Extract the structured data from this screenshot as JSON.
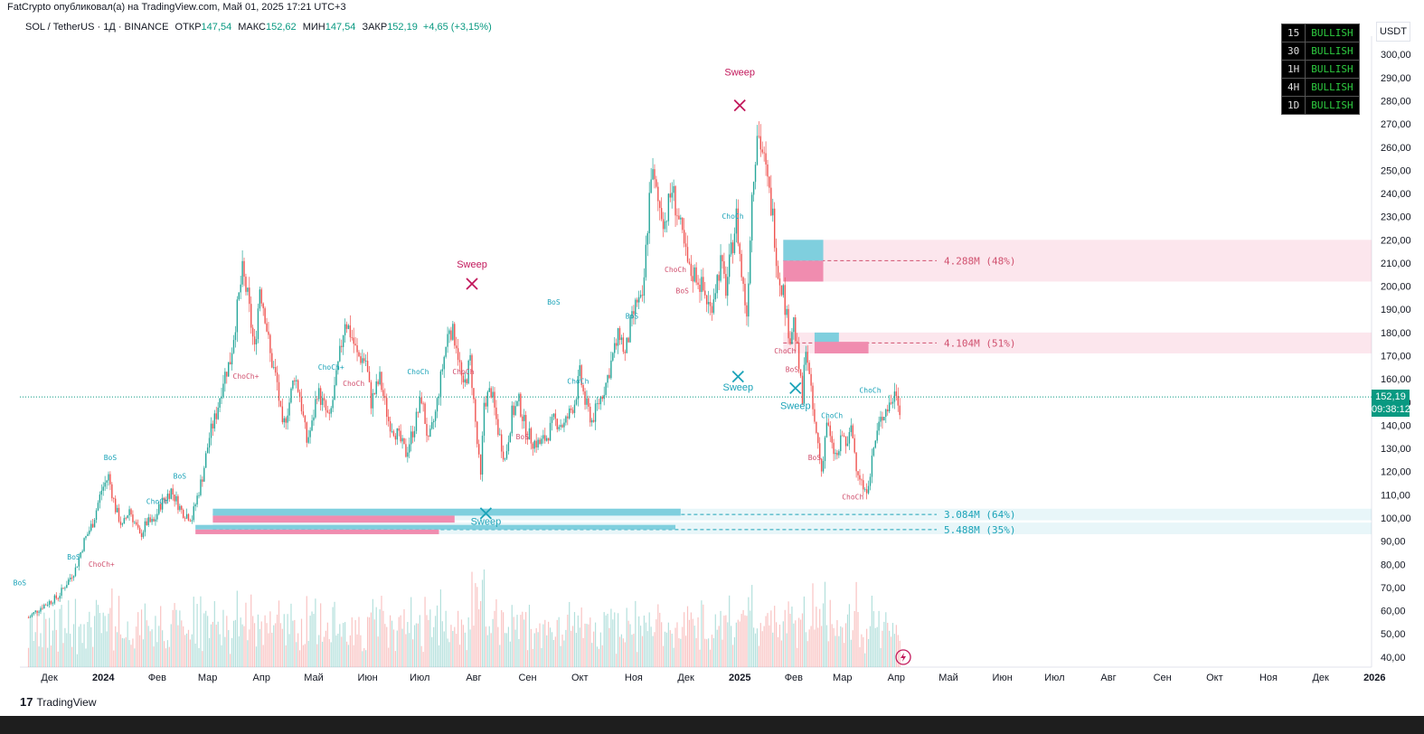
{
  "header": {
    "caption": "FatCrypto опубликовал(а) на TradingView.com, Май 01, 2025 17:21 UTC+3"
  },
  "legend": {
    "symbol": "SOL / TetherUS · 1Д · BINANCE",
    "open_label": "ОТКР",
    "open_value": "147,54",
    "high_label": "МАКС",
    "high_value": "152,62",
    "low_label": "МИН",
    "low_value": "147,54",
    "close_label": "ЗАКР",
    "close_value": "152,19",
    "change": "+4,65 (+3,15%)"
  },
  "currency_button": "USDT",
  "trend_table": [
    {
      "tf": "15",
      "status": "BULLISH"
    },
    {
      "tf": "30",
      "status": "BULLISH"
    },
    {
      "tf": "1H",
      "status": "BULLISH"
    },
    {
      "tf": "4H",
      "status": "BULLISH"
    },
    {
      "tf": "1D",
      "status": "BULLISH"
    }
  ],
  "current_price": {
    "price": "152,19",
    "countdown": "09:38:12"
  },
  "footer": {
    "brand": "TradingView",
    "logo": "17"
  },
  "colors": {
    "up": "#26a69a",
    "down": "#ef5350",
    "bull_zone": "#7fcfde",
    "bear_zone": "#f08caf",
    "sweep_red": "#c2185b",
    "sweep_teal": "#1ba3b8"
  },
  "chart_data": {
    "type": "candlestick",
    "symbol": "SOL / TetherUS",
    "timeframe": "1D",
    "ylim": [
      37,
      306
    ],
    "y_ticks": [
      "40,00",
      "50,00",
      "60,00",
      "70,00",
      "80,00",
      "90,00",
      "100,00",
      "110,00",
      "120,00",
      "130,00",
      "140,00",
      "150,00",
      "160,00",
      "170,00",
      "180,00",
      "190,00",
      "200,00",
      "210,00",
      "220,00",
      "230,00",
      "240,00",
      "250,00",
      "260,00",
      "270,00",
      "280,00",
      "290,00",
      "300,00"
    ],
    "x_ticks": [
      {
        "label": "Дек",
        "day": 0,
        "bold": false
      },
      {
        "label": "2024",
        "day": 31,
        "bold": true
      },
      {
        "label": "Фев",
        "day": 62,
        "bold": false
      },
      {
        "label": "Мар",
        "day": 91,
        "bold": false
      },
      {
        "label": "Апр",
        "day": 122,
        "bold": false
      },
      {
        "label": "Май",
        "day": 152,
        "bold": false
      },
      {
        "label": "Июн",
        "day": 183,
        "bold": false
      },
      {
        "label": "Июл",
        "day": 213,
        "bold": false
      },
      {
        "label": "Авг",
        "day": 244,
        "bold": false
      },
      {
        "label": "Сен",
        "day": 275,
        "bold": false
      },
      {
        "label": "Окт",
        "day": 305,
        "bold": false
      },
      {
        "label": "Ноя",
        "day": 336,
        "bold": false
      },
      {
        "label": "Дек",
        "day": 366,
        "bold": false
      },
      {
        "label": "2025",
        "day": 397,
        "bold": true
      },
      {
        "label": "Фев",
        "day": 428,
        "bold": false
      },
      {
        "label": "Мар",
        "day": 456,
        "bold": false
      },
      {
        "label": "Апр",
        "day": 487,
        "bold": false
      },
      {
        "label": "Май",
        "day": 517,
        "bold": false
      },
      {
        "label": "Июн",
        "day": 548,
        "bold": false
      },
      {
        "label": "Июл",
        "day": 578,
        "bold": false
      },
      {
        "label": "Авг",
        "day": 609,
        "bold": false
      },
      {
        "label": "Сен",
        "day": 640,
        "bold": false
      },
      {
        "label": "Окт",
        "day": 670,
        "bold": false
      },
      {
        "label": "Ноя",
        "day": 701,
        "bold": false
      },
      {
        "label": "Дек",
        "day": 731,
        "bold": false
      },
      {
        "label": "2026",
        "day": 762,
        "bold": true
      }
    ],
    "price_path": [
      [
        -12,
        57
      ],
      [
        -4,
        62
      ],
      [
        5,
        66
      ],
      [
        10,
        72
      ],
      [
        15,
        78
      ],
      [
        20,
        90
      ],
      [
        25,
        98
      ],
      [
        30,
        112
      ],
      [
        34,
        118
      ],
      [
        38,
        104
      ],
      [
        42,
        96
      ],
      [
        46,
        104
      ],
      [
        52,
        92
      ],
      [
        56,
        98
      ],
      [
        60,
        98
      ],
      [
        64,
        106
      ],
      [
        70,
        112
      ],
      [
        76,
        103
      ],
      [
        82,
        100
      ],
      [
        88,
        118
      ],
      [
        92,
        135
      ],
      [
        96,
        145
      ],
      [
        100,
        160
      ],
      [
        104,
        168
      ],
      [
        108,
        190
      ],
      [
        111,
        206
      ],
      [
        114,
        195
      ],
      [
        118,
        172
      ],
      [
        121,
        200
      ],
      [
        124,
        188
      ],
      [
        127,
        170
      ],
      [
        131,
        158
      ],
      [
        134,
        138
      ],
      [
        138,
        150
      ],
      [
        141,
        162
      ],
      [
        144,
        153
      ],
      [
        148,
        133
      ],
      [
        151,
        140
      ],
      [
        154,
        155
      ],
      [
        158,
        148
      ],
      [
        161,
        142
      ],
      [
        165,
        160
      ],
      [
        170,
        186
      ],
      [
        174,
        178
      ],
      [
        177,
        170
      ],
      [
        182,
        168
      ],
      [
        185,
        150
      ],
      [
        190,
        160
      ],
      [
        195,
        142
      ],
      [
        200,
        136
      ],
      [
        205,
        128
      ],
      [
        210,
        140
      ],
      [
        214,
        152
      ],
      [
        218,
        132
      ],
      [
        222,
        145
      ],
      [
        226,
        165
      ],
      [
        230,
        183
      ],
      [
        234,
        176
      ],
      [
        238,
        155
      ],
      [
        242,
        168
      ],
      [
        246,
        132
      ],
      [
        248,
        117
      ],
      [
        250,
        150
      ],
      [
        254,
        155
      ],
      [
        258,
        138
      ],
      [
        262,
        125
      ],
      [
        266,
        145
      ],
      [
        270,
        150
      ],
      [
        274,
        138
      ],
      [
        278,
        133
      ],
      [
        282,
        132
      ],
      [
        286,
        135
      ],
      [
        290,
        142
      ],
      [
        296,
        140
      ],
      [
        302,
        150
      ],
      [
        305,
        162
      ],
      [
        308,
        150
      ],
      [
        312,
        142
      ],
      [
        316,
        150
      ],
      [
        320,
        158
      ],
      [
        324,
        170
      ],
      [
        328,
        180
      ],
      [
        331,
        170
      ],
      [
        334,
        182
      ],
      [
        338,
        194
      ],
      [
        341,
        192
      ],
      [
        343,
        215
      ],
      [
        346,
        250
      ],
      [
        350,
        236
      ],
      [
        354,
        228
      ],
      [
        358,
        242
      ],
      [
        361,
        232
      ],
      [
        364,
        220
      ],
      [
        368,
        206
      ],
      [
        372,
        205
      ],
      [
        376,
        198
      ],
      [
        380,
        190
      ],
      [
        383,
        200
      ],
      [
        386,
        210
      ],
      [
        389,
        199
      ],
      [
        392,
        214
      ],
      [
        395,
        230
      ],
      [
        398,
        205
      ],
      [
        401,
        188
      ],
      [
        404,
        240
      ],
      [
        407,
        268
      ],
      [
        410,
        258
      ],
      [
        413,
        244
      ],
      [
        416,
        230
      ],
      [
        419,
        206
      ],
      [
        422,
        198
      ],
      [
        424,
        186
      ],
      [
        426,
        178
      ],
      [
        428,
        185
      ],
      [
        431,
        165
      ],
      [
        433,
        150
      ],
      [
        435,
        176
      ],
      [
        437,
        160
      ],
      [
        440,
        140
      ],
      [
        442,
        132
      ],
      [
        444,
        120
      ],
      [
        447,
        142
      ],
      [
        450,
        130
      ],
      [
        453,
        126
      ],
      [
        456,
        136
      ],
      [
        459,
        130
      ],
      [
        461,
        140
      ],
      [
        464,
        123
      ],
      [
        466,
        118
      ],
      [
        469,
        110
      ],
      [
        472,
        120
      ],
      [
        474,
        130
      ],
      [
        477,
        140
      ],
      [
        480,
        146
      ],
      [
        484,
        150
      ],
      [
        487,
        155
      ],
      [
        489,
        148
      ]
    ],
    "structure_labels": [
      {
        "text": "BoS",
        "x": 35,
        "y": 125,
        "color": "#1ba3b8"
      },
      {
        "text": "BoS",
        "x": 75,
        "y": 117,
        "color": "#1ba3b8"
      },
      {
        "text": "BoS",
        "x": 14,
        "y": 82,
        "color": "#1ba3b8"
      },
      {
        "text": "BoS",
        "x": -17,
        "y": 71,
        "color": "#1ba3b8"
      },
      {
        "text": "ChoCh",
        "x": 62,
        "y": 106,
        "color": "#1ba3b8"
      },
      {
        "text": "ChoCh+",
        "x": 30,
        "y": 79,
        "color": "#d0506e"
      },
      {
        "text": "ChoCh+",
        "x": 113,
        "y": 160,
        "color": "#d0506e"
      },
      {
        "text": "ChoCh+",
        "x": 162,
        "y": 164,
        "color": "#1ba3b8"
      },
      {
        "text": "ChoCh",
        "x": 175,
        "y": 157,
        "color": "#d0506e"
      },
      {
        "text": "ChoCh",
        "x": 212,
        "y": 162,
        "color": "#1ba3b8"
      },
      {
        "text": "ChoCh",
        "x": 238,
        "y": 162,
        "color": "#d0506e"
      },
      {
        "text": "BoS",
        "x": 272,
        "y": 134,
        "color": "#d0506e"
      },
      {
        "text": "ChoCh",
        "x": 304,
        "y": 158,
        "color": "#1ba3b8"
      },
      {
        "text": "BoS",
        "x": 290,
        "y": 192,
        "color": "#1ba3b8"
      },
      {
        "text": "BoS",
        "x": 335,
        "y": 186,
        "color": "#1ba3b8"
      },
      {
        "text": "ChoCh",
        "x": 360,
        "y": 206,
        "color": "#d0506e"
      },
      {
        "text": "BoS",
        "x": 364,
        "y": 197,
        "color": "#d0506e"
      },
      {
        "text": "ChoCh",
        "x": 393,
        "y": 229,
        "color": "#1ba3b8"
      },
      {
        "text": "ChoCh",
        "x": 423,
        "y": 171,
        "color": "#d0506e"
      },
      {
        "text": "BoS",
        "x": 427,
        "y": 163,
        "color": "#d0506e"
      },
      {
        "text": "BoS",
        "x": 440,
        "y": 125,
        "color": "#d0506e"
      },
      {
        "text": "ChoCh",
        "x": 450,
        "y": 143,
        "color": "#1ba3b8"
      },
      {
        "text": "ChoCh",
        "x": 462,
        "y": 108,
        "color": "#d0506e"
      },
      {
        "text": "ChoCh",
        "x": 472,
        "y": 154,
        "color": "#1ba3b8"
      }
    ],
    "sweeps": [
      {
        "text": "Sweep",
        "x": 243,
        "y": 205,
        "marker_y": 201,
        "label_y": 208,
        "color": "#c2185b"
      },
      {
        "text": "Sweep",
        "x": 397,
        "y": 288,
        "marker_y": 278,
        "label_y": 291,
        "color": "#c2185b"
      },
      {
        "text": "Sweep",
        "x": 396,
        "y": 160,
        "marker_y": 161,
        "label_y": 155,
        "color": "#1ba3b8"
      },
      {
        "text": "Sweep",
        "x": 429,
        "y": 155,
        "marker_y": 156,
        "label_y": 147,
        "color": "#1ba3b8"
      },
      {
        "text": "Sweep",
        "x": 251,
        "y": 100,
        "marker_y": 102,
        "label_y": 97,
        "color": "#1ba3b8"
      }
    ],
    "liquidity_zones": [
      {
        "label": "4.288M (48%)",
        "y_top": 220,
        "y_bottom": 202,
        "line_y": 211,
        "side": "sell"
      },
      {
        "label": "4.104M (51%)",
        "y_top": 180,
        "y_bottom": 171,
        "line_y": 175.5,
        "side": "sell"
      },
      {
        "label": "3.084M (64%)",
        "y_top": 104,
        "y_bottom": 99,
        "line_y": 101.5,
        "side": "buy"
      },
      {
        "label": "5.488M (35%)",
        "y_top": 98,
        "y_bottom": 93,
        "line_y": 95,
        "side": "buy"
      }
    ],
    "order_blocks": [
      {
        "side": "buy",
        "x0": 422,
        "x1": 445,
        "y_top": 220,
        "y_bottom": 211
      },
      {
        "side": "sell",
        "x0": 422,
        "x1": 445,
        "y_top": 211,
        "y_bottom": 202
      },
      {
        "side": "buy",
        "x0": 440,
        "x1": 454,
        "y_top": 180,
        "y_bottom": 175
      },
      {
        "side": "sell",
        "x0": 440,
        "x1": 471,
        "y_top": 176,
        "y_bottom": 171
      },
      {
        "side": "buy",
        "x0": 94,
        "x1": 363,
        "y_top": 104,
        "y_bottom": 101
      },
      {
        "side": "sell",
        "x0": 94,
        "x1": 233,
        "y_top": 101,
        "y_bottom": 98
      },
      {
        "side": "buy",
        "x0": 84,
        "x1": 360,
        "y_top": 97,
        "y_bottom": 95
      },
      {
        "side": "sell",
        "x0": 84,
        "x1": 224,
        "y_top": 95,
        "y_bottom": 93
      }
    ]
  }
}
